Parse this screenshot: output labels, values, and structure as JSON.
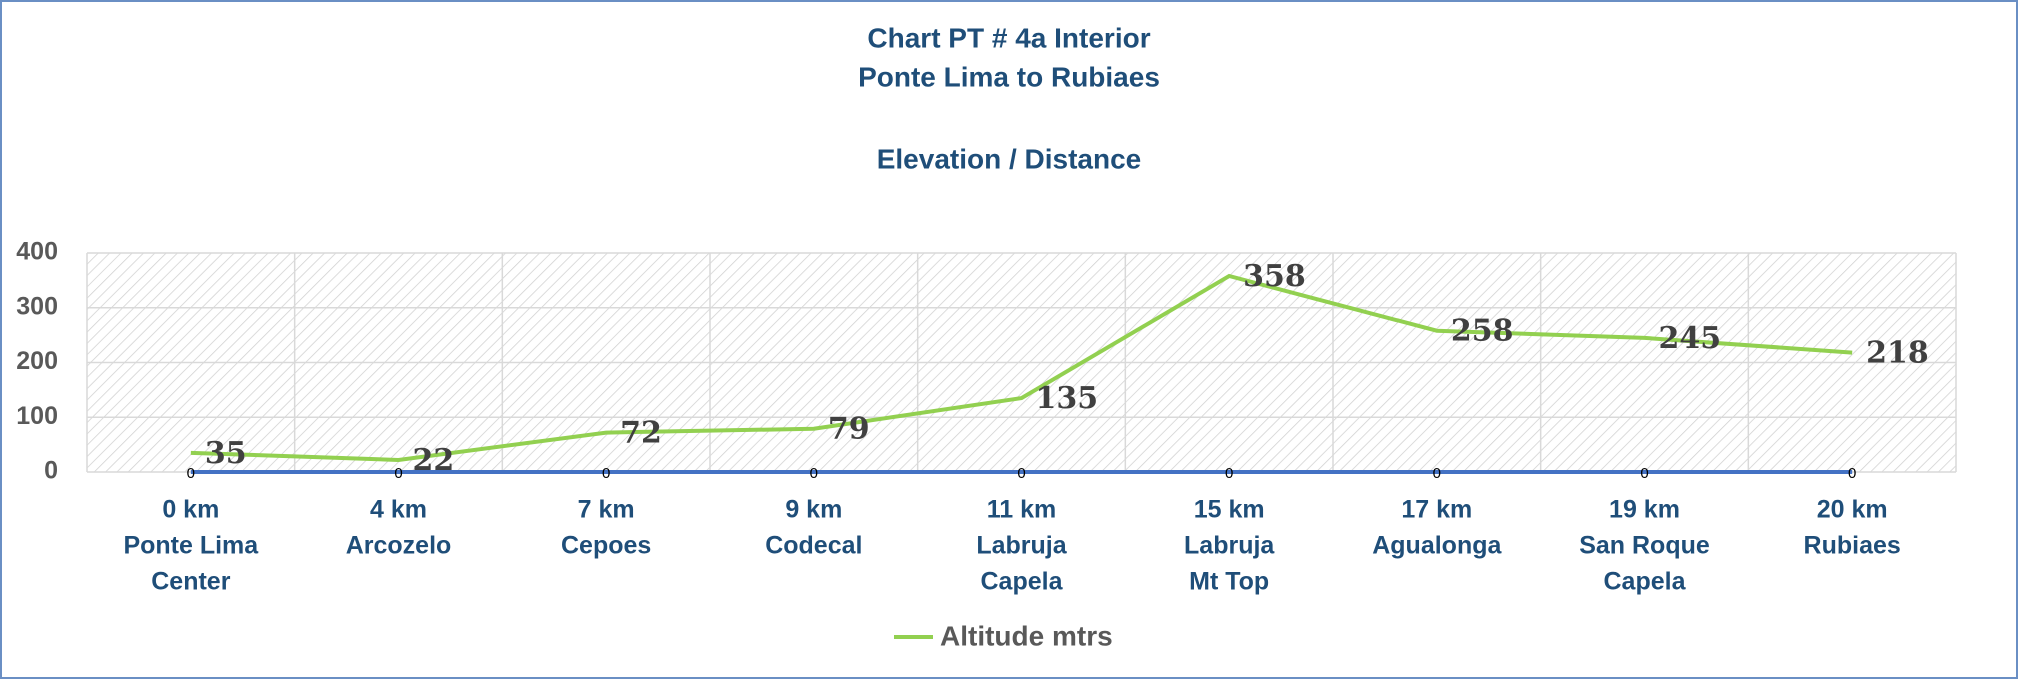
{
  "chart_data": {
    "type": "line",
    "title": [
      "Chart   PT # 4a   Interior",
      "Ponte Lima to Rubiaes",
      "Elevation / Distance"
    ],
    "categories": [
      [
        "0 km",
        "Ponte Lima",
        "Center"
      ],
      [
        "4 km",
        "Arcozelo"
      ],
      [
        "7 km",
        "Cepoes"
      ],
      [
        "9 km",
        "Codecal"
      ],
      [
        "11 km",
        "Labruja",
        "Capela"
      ],
      [
        "15 km",
        "Labruja",
        "Mt Top"
      ],
      [
        "17 km",
        "Agualonga"
      ],
      [
        "19 km",
        "San Roque",
        "Capela"
      ],
      [
        "20 km",
        "Rubiaes"
      ]
    ],
    "series": [
      {
        "name": "Altitude  mtrs",
        "color": "#92d050",
        "values": [
          35,
          22,
          72,
          79,
          135,
          358,
          258,
          245,
          218
        ]
      },
      {
        "color": "#4472c4",
        "values": [
          0,
          0,
          0,
          0,
          0,
          0,
          0,
          0,
          0
        ]
      }
    ],
    "ylim": [
      0,
      400
    ],
    "yticks": [
      0,
      100,
      200,
      300,
      400
    ],
    "grid": true,
    "legend": "bottom"
  }
}
